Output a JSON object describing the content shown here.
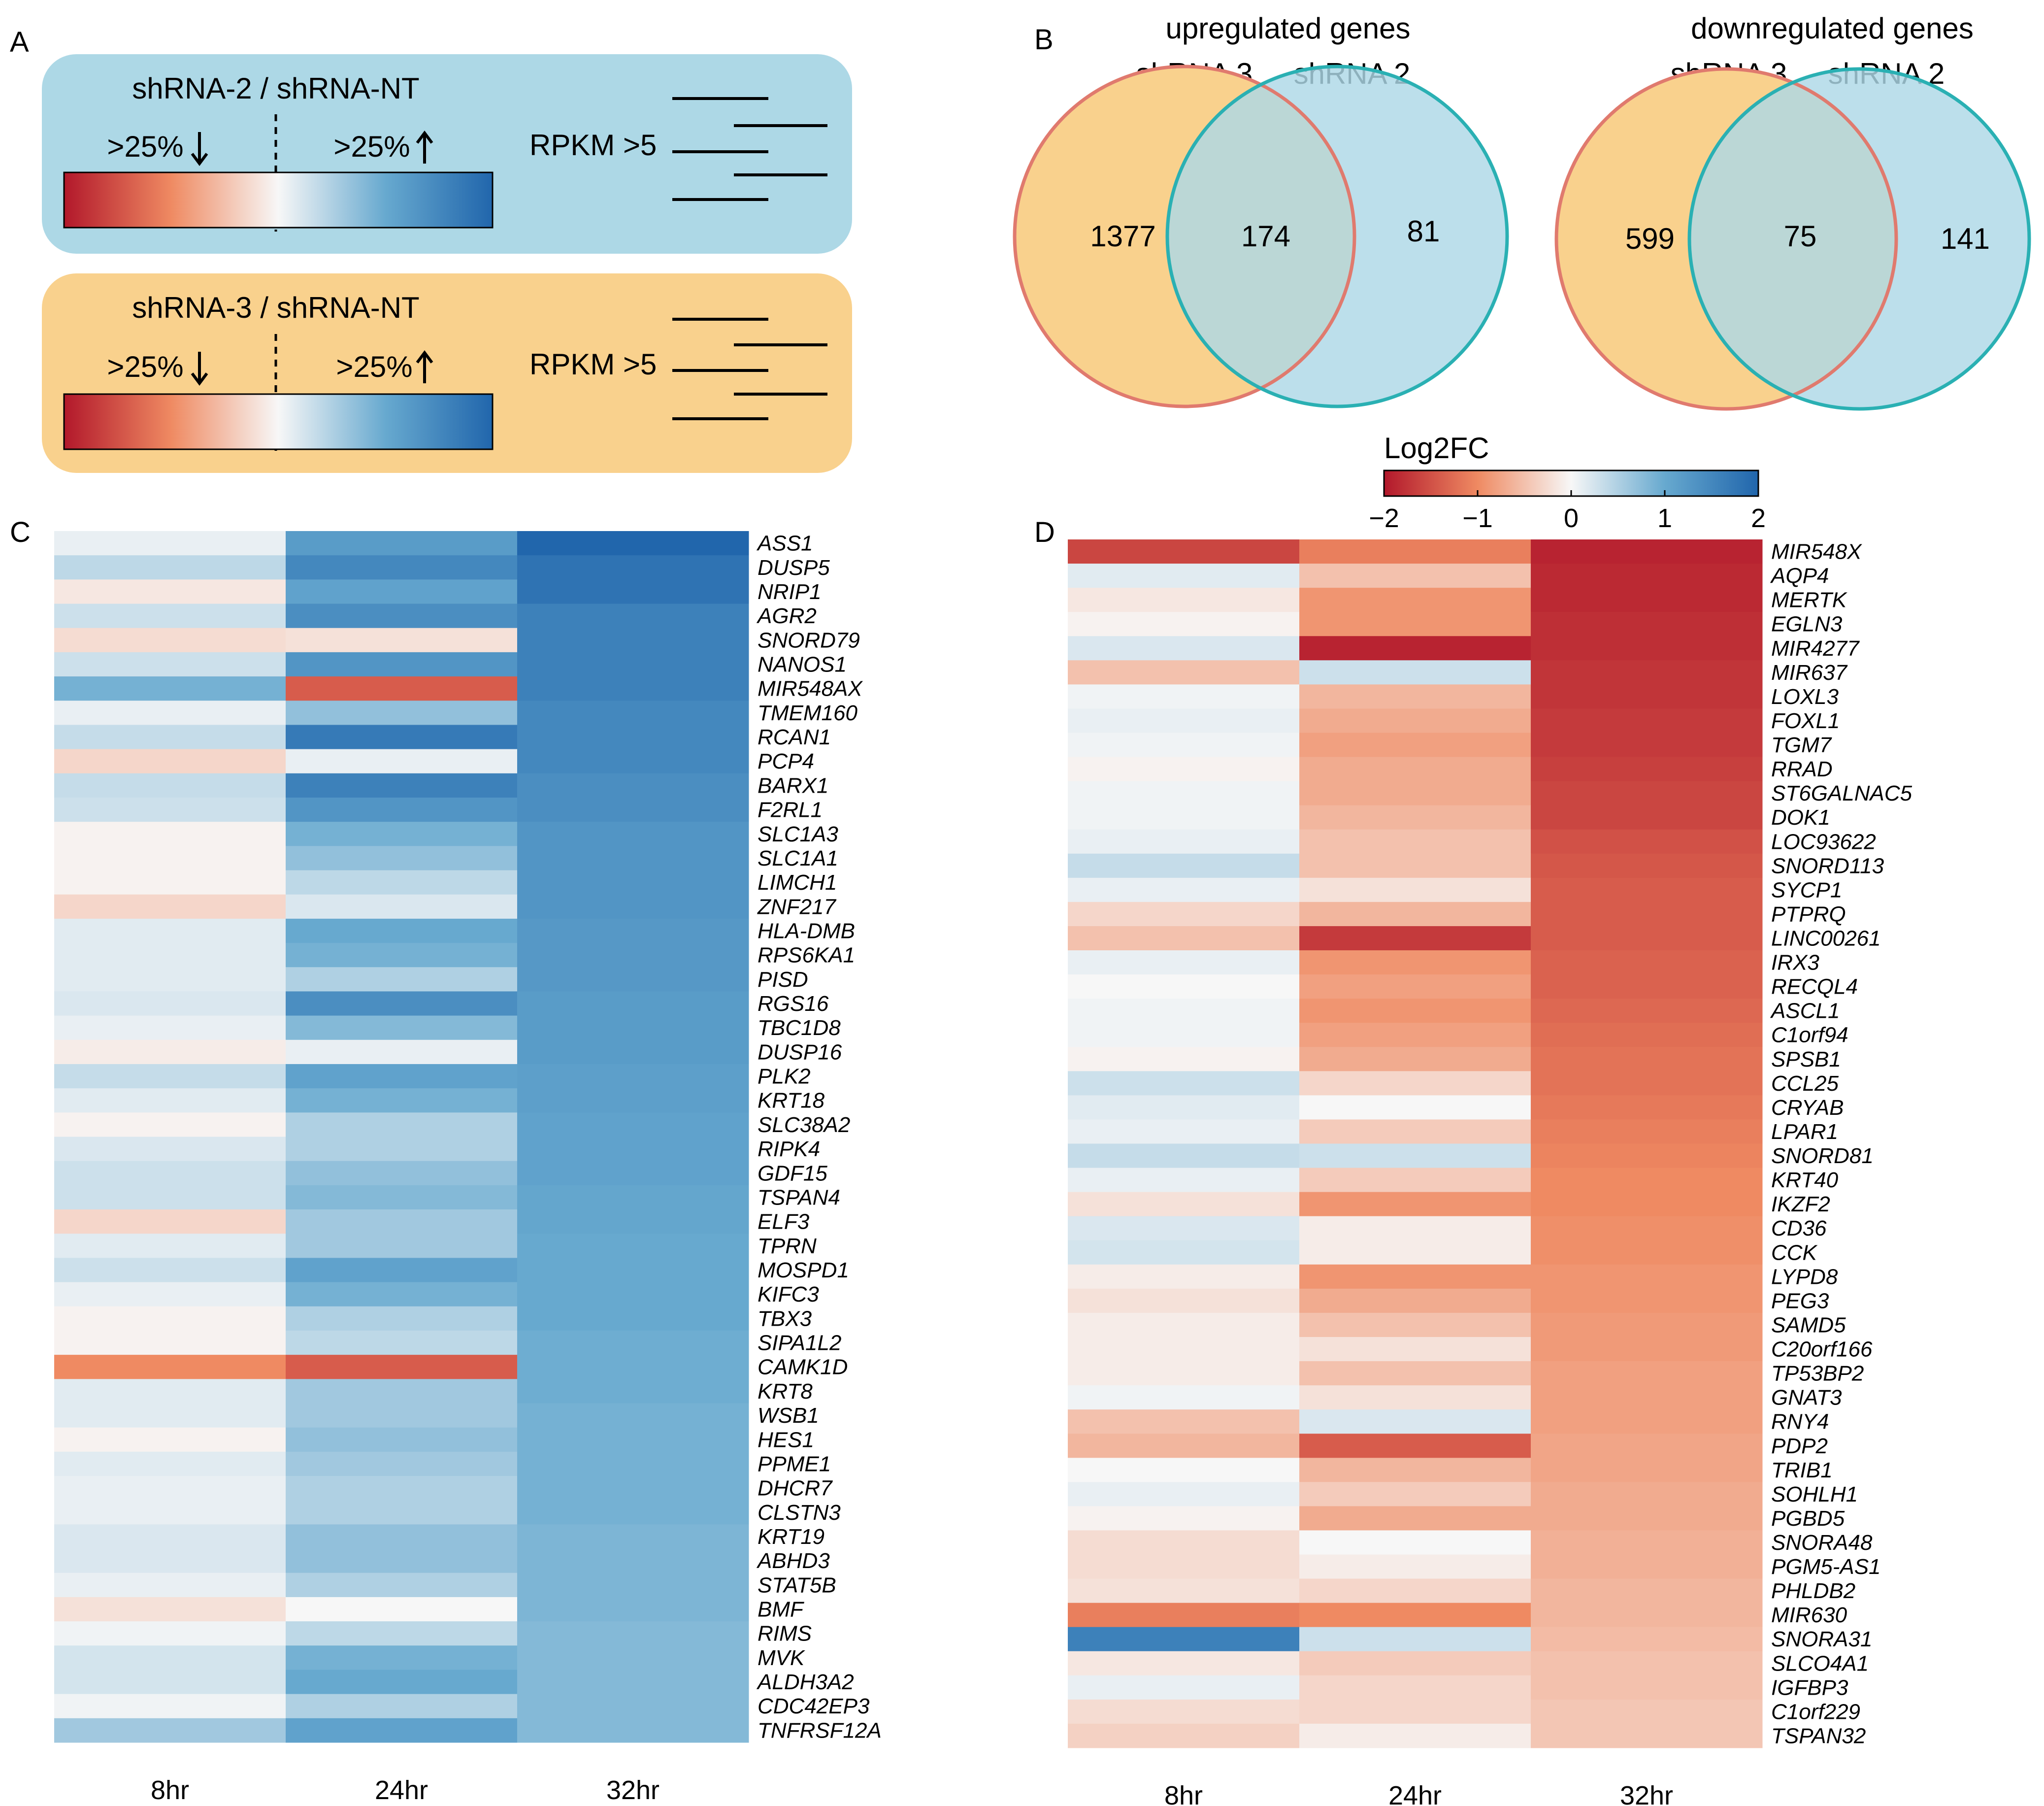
{
  "panel_labels": {
    "a": "A",
    "b": "B",
    "c": "C",
    "d": "D"
  },
  "panel_a": {
    "boxes": [
      {
        "title": "shRNA-2 / shRNA-NT",
        "down_label": ">25%",
        "up_label": ">25%",
        "rpkm_label": "RPKM >5",
        "fill": "#add8e6"
      },
      {
        "title": "shRNA-3 / shRNA-NT",
        "down_label": ">25%",
        "up_label": ">25%",
        "rpkm_label": "RPKM >5",
        "fill": "#f9d18d"
      }
    ]
  },
  "panel_b": {
    "venns": [
      {
        "title": "upregulated genes",
        "left_label": "shRNA 3",
        "right_label": "shRNA 2",
        "left_only": "1377",
        "overlap": "174",
        "right_only": "81"
      },
      {
        "title": "downregulated genes",
        "left_label": "shRNA 3",
        "right_label": "shRNA 2",
        "left_only": "599",
        "overlap": "75",
        "right_only": "141"
      }
    ]
  },
  "colorbar": {
    "title": "Log2FC",
    "ticks": [
      "−2",
      "−1",
      "0",
      "1",
      "2"
    ],
    "colors": {
      "low": "#b2182b",
      "mid": "#f7f7f7",
      "high": "#2166ac"
    }
  },
  "chart_data": [
    {
      "type": "heatmap",
      "panel": "C",
      "title": "",
      "columns": [
        "8hr",
        "24hr",
        "32hr"
      ],
      "value_range": [
        -2,
        2
      ],
      "rows": [
        {
          "gene": "ASS1",
          "values": [
            0.1,
            1.2,
            2.0
          ]
        },
        {
          "gene": "DUSP5",
          "values": [
            0.4,
            1.5,
            1.8
          ]
        },
        {
          "gene": "NRIP1",
          "values": [
            -0.15,
            1.1,
            1.8
          ]
        },
        {
          "gene": "AGR2",
          "values": [
            0.3,
            1.4,
            1.6
          ]
        },
        {
          "gene": "SNORD79",
          "values": [
            -0.25,
            -0.2,
            1.6
          ]
        },
        {
          "gene": "NANOS1",
          "values": [
            0.3,
            1.3,
            1.6
          ]
        },
        {
          "gene": "MIR548AX",
          "values": [
            0.9,
            -1.4,
            1.6
          ]
        },
        {
          "gene": "TMEM160",
          "values": [
            0.1,
            0.7,
            1.5
          ]
        },
        {
          "gene": "RCAN1",
          "values": [
            0.35,
            1.7,
            1.5
          ]
        },
        {
          "gene": "PCP4",
          "values": [
            -0.3,
            0.1,
            1.5
          ]
        },
        {
          "gene": "BARX1",
          "values": [
            0.35,
            1.6,
            1.4
          ]
        },
        {
          "gene": "F2RL1",
          "values": [
            0.3,
            1.3,
            1.4
          ]
        },
        {
          "gene": "SLC1A3",
          "values": [
            -0.05,
            0.9,
            1.3
          ]
        },
        {
          "gene": "SLC1A1",
          "values": [
            -0.05,
            0.7,
            1.3
          ]
        },
        {
          "gene": "LIMCH1",
          "values": [
            -0.05,
            0.4,
            1.3
          ]
        },
        {
          "gene": "ZNF217",
          "values": [
            -0.3,
            0.2,
            1.3
          ]
        },
        {
          "gene": "HLA-DMB",
          "values": [
            0.15,
            1.0,
            1.25
          ]
        },
        {
          "gene": "RPS6KA1",
          "values": [
            0.15,
            0.9,
            1.25
          ]
        },
        {
          "gene": "PISD",
          "values": [
            0.15,
            0.5,
            1.25
          ]
        },
        {
          "gene": "RGS16",
          "values": [
            0.2,
            1.4,
            1.2
          ]
        },
        {
          "gene": "TBC1D8",
          "values": [
            0.1,
            0.8,
            1.2
          ]
        },
        {
          "gene": "DUSP16",
          "values": [
            -0.1,
            0.1,
            1.2
          ]
        },
        {
          "gene": "PLK2",
          "values": [
            0.35,
            1.1,
            1.15
          ]
        },
        {
          "gene": "KRT18",
          "values": [
            0.15,
            0.9,
            1.15
          ]
        },
        {
          "gene": "SLC38A2",
          "values": [
            -0.05,
            0.5,
            1.1
          ]
        },
        {
          "gene": "RIPK4",
          "values": [
            0.2,
            0.5,
            1.1
          ]
        },
        {
          "gene": "GDF15",
          "values": [
            0.3,
            0.7,
            1.1
          ]
        },
        {
          "gene": "TSPAN4",
          "values": [
            0.3,
            0.8,
            1.05
          ]
        },
        {
          "gene": "ELF3",
          "values": [
            -0.3,
            0.6,
            1.05
          ]
        },
        {
          "gene": "TPRN",
          "values": [
            0.15,
            0.6,
            1.0
          ]
        },
        {
          "gene": "MOSPD1",
          "values": [
            0.3,
            1.1,
            1.0
          ]
        },
        {
          "gene": "KIFC3",
          "values": [
            0.1,
            0.9,
            1.0
          ]
        },
        {
          "gene": "TBX3",
          "values": [
            -0.05,
            0.5,
            1.0
          ]
        },
        {
          "gene": "SIPA1L2",
          "values": [
            -0.05,
            0.4,
            0.95
          ]
        },
        {
          "gene": "CAMK1D",
          "values": [
            -1.0,
            -1.4,
            0.95
          ]
        },
        {
          "gene": "KRT8",
          "values": [
            0.15,
            0.6,
            0.95
          ]
        },
        {
          "gene": "WSB1",
          "values": [
            0.15,
            0.6,
            0.9
          ]
        },
        {
          "gene": "HES1",
          "values": [
            -0.05,
            0.7,
            0.9
          ]
        },
        {
          "gene": "PPME1",
          "values": [
            0.15,
            0.6,
            0.9
          ]
        },
        {
          "gene": "DHCR7",
          "values": [
            0.1,
            0.5,
            0.9
          ]
        },
        {
          "gene": "CLSTN3",
          "values": [
            0.1,
            0.5,
            0.9
          ]
        },
        {
          "gene": "KRT19",
          "values": [
            0.2,
            0.7,
            0.85
          ]
        },
        {
          "gene": "ABHD3",
          "values": [
            0.2,
            0.7,
            0.85
          ]
        },
        {
          "gene": "STAT5B",
          "values": [
            0.1,
            0.5,
            0.85
          ]
        },
        {
          "gene": "BMF",
          "values": [
            -0.2,
            0.0,
            0.85
          ]
        },
        {
          "gene": "RIMS",
          "values": [
            0.05,
            0.4,
            0.8
          ]
        },
        {
          "gene": "MVK",
          "values": [
            0.25,
            0.9,
            0.8
          ]
        },
        {
          "gene": "ALDH3A2",
          "values": [
            0.25,
            1.0,
            0.8
          ]
        },
        {
          "gene": "CDC42EP3",
          "values": [
            0.05,
            0.5,
            0.8
          ]
        },
        {
          "gene": "TNFRSF12A",
          "values": [
            0.6,
            1.1,
            0.8
          ]
        }
      ]
    },
    {
      "type": "heatmap",
      "panel": "D",
      "title": "",
      "columns": [
        "8hr",
        "24hr",
        "32hr"
      ],
      "value_range": [
        -2,
        2
      ],
      "rows": [
        {
          "gene": "MIR548X",
          "values": [
            -1.6,
            -1.1,
            -1.9
          ]
        },
        {
          "gene": "AQP4",
          "values": [
            0.15,
            -0.5,
            -1.85
          ]
        },
        {
          "gene": "MERTK",
          "values": [
            -0.15,
            -0.9,
            -1.85
          ]
        },
        {
          "gene": "EGLN3",
          "values": [
            -0.05,
            -0.9,
            -1.8
          ]
        },
        {
          "gene": "MIR4277",
          "values": [
            0.2,
            -1.9,
            -1.8
          ]
        },
        {
          "gene": "MIR637",
          "values": [
            -0.5,
            0.3,
            -1.75
          ]
        },
        {
          "gene": "LOXL3",
          "values": [
            0.05,
            -0.6,
            -1.75
          ]
        },
        {
          "gene": "FOXL1",
          "values": [
            0.1,
            -0.7,
            -1.7
          ]
        },
        {
          "gene": "TGM7",
          "values": [
            0.05,
            -0.8,
            -1.7
          ]
        },
        {
          "gene": "RRAD",
          "values": [
            -0.05,
            -0.7,
            -1.65
          ]
        },
        {
          "gene": "ST6GALNAC5",
          "values": [
            0.05,
            -0.7,
            -1.6
          ]
        },
        {
          "gene": "DOK1",
          "values": [
            0.05,
            -0.6,
            -1.6
          ]
        },
        {
          "gene": "LOC93622",
          "values": [
            0.1,
            -0.5,
            -1.5
          ]
        },
        {
          "gene": "SNORD113",
          "values": [
            0.35,
            -0.5,
            -1.45
          ]
        },
        {
          "gene": "SYCP1",
          "values": [
            0.1,
            -0.2,
            -1.4
          ]
        },
        {
          "gene": "PTPRQ",
          "values": [
            -0.3,
            -0.6,
            -1.4
          ]
        },
        {
          "gene": "LINC00261",
          "values": [
            -0.5,
            -1.7,
            -1.4
          ]
        },
        {
          "gene": "IRX3",
          "values": [
            0.1,
            -0.9,
            -1.35
          ]
        },
        {
          "gene": "RECQL4",
          "values": [
            0.0,
            -0.8,
            -1.35
          ]
        },
        {
          "gene": "ASCL1",
          "values": [
            0.05,
            -0.9,
            -1.3
          ]
        },
        {
          "gene": "C1orf94",
          "values": [
            0.05,
            -0.8,
            -1.25
          ]
        },
        {
          "gene": "SPSB1",
          "values": [
            -0.05,
            -0.7,
            -1.2
          ]
        },
        {
          "gene": "CCL25",
          "values": [
            0.3,
            -0.3,
            -1.2
          ]
        },
        {
          "gene": "CRYAB",
          "values": [
            0.15,
            0.0,
            -1.15
          ]
        },
        {
          "gene": "LPAR1",
          "values": [
            0.1,
            -0.4,
            -1.1
          ]
        },
        {
          "gene": "SNORD81",
          "values": [
            0.35,
            0.3,
            -1.05
          ]
        },
        {
          "gene": "KRT40",
          "values": [
            0.1,
            -0.4,
            -1.0
          ]
        },
        {
          "gene": "IKZF2",
          "values": [
            -0.2,
            -0.9,
            -1.0
          ]
        },
        {
          "gene": "CD36",
          "values": [
            0.2,
            -0.1,
            -0.95
          ]
        },
        {
          "gene": "CCK",
          "values": [
            0.25,
            -0.1,
            -0.95
          ]
        },
        {
          "gene": "LYPD8",
          "values": [
            -0.1,
            -0.9,
            -0.9
          ]
        },
        {
          "gene": "PEG3",
          "values": [
            -0.2,
            -0.7,
            -0.9
          ]
        },
        {
          "gene": "SAMD5",
          "values": [
            -0.1,
            -0.5,
            -0.85
          ]
        },
        {
          "gene": "C20orf166",
          "values": [
            -0.1,
            -0.2,
            -0.85
          ]
        },
        {
          "gene": "TP53BP2",
          "values": [
            -0.1,
            -0.5,
            -0.8
          ]
        },
        {
          "gene": "GNAT3",
          "values": [
            0.05,
            -0.2,
            -0.8
          ]
        },
        {
          "gene": "RNY4",
          "values": [
            -0.5,
            0.2,
            -0.8
          ]
        },
        {
          "gene": "PDP2",
          "values": [
            -0.6,
            -1.4,
            -0.75
          ]
        },
        {
          "gene": "TRIB1",
          "values": [
            0.0,
            -0.6,
            -0.75
          ]
        },
        {
          "gene": "SOHLH1",
          "values": [
            0.1,
            -0.4,
            -0.7
          ]
        },
        {
          "gene": "PGBD5",
          "values": [
            -0.05,
            -0.7,
            -0.7
          ]
        },
        {
          "gene": "SNORA48",
          "values": [
            -0.25,
            0.0,
            -0.65
          ]
        },
        {
          "gene": "PGM5-AS1",
          "values": [
            -0.25,
            -0.1,
            -0.65
          ]
        },
        {
          "gene": "PHLDB2",
          "values": [
            -0.2,
            -0.3,
            -0.6
          ]
        },
        {
          "gene": "MIR630",
          "values": [
            -1.1,
            -1.0,
            -0.6
          ]
        },
        {
          "gene": "SNORA31",
          "values": [
            1.6,
            0.3,
            -0.55
          ]
        },
        {
          "gene": "SLCO4A1",
          "values": [
            -0.15,
            -0.4,
            -0.5
          ]
        },
        {
          "gene": "IGFBP3",
          "values": [
            0.1,
            -0.3,
            -0.5
          ]
        },
        {
          "gene": "C1orf229",
          "values": [
            -0.25,
            -0.3,
            -0.45
          ]
        },
        {
          "gene": "TSPAN32",
          "values": [
            -0.35,
            -0.1,
            -0.45
          ]
        }
      ]
    }
  ]
}
